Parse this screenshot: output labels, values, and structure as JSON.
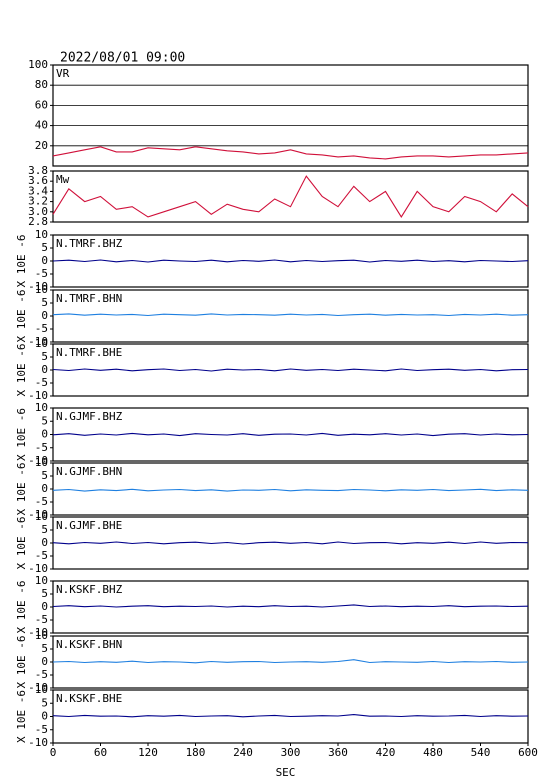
{
  "header": {
    "title": "2022/08/01 09:00"
  },
  "chart_data": [
    {
      "type": "line",
      "title": "VR",
      "xlim": [
        0,
        600
      ],
      "ylim": [
        0,
        100
      ],
      "yticks": [
        20,
        40,
        60,
        80,
        100
      ],
      "grid": true,
      "x": [
        0,
        20,
        40,
        60,
        80,
        100,
        120,
        140,
        160,
        180,
        200,
        220,
        240,
        260,
        280,
        300,
        320,
        340,
        360,
        380,
        400,
        420,
        440,
        460,
        480,
        500,
        520,
        540,
        560,
        580,
        600
      ],
      "series": [
        {
          "color": "#d0103a",
          "values": [
            10,
            13,
            16,
            19,
            14,
            14,
            18,
            17,
            16,
            19,
            17,
            15,
            14,
            12,
            13,
            16,
            12,
            11,
            9,
            10,
            8,
            7,
            9,
            10,
            10,
            9,
            10,
            11,
            11,
            12,
            13
          ]
        }
      ]
    },
    {
      "type": "line",
      "title": "Mw",
      "xlim": [
        0,
        600
      ],
      "ylim": [
        2.8,
        3.8
      ],
      "yticks": [
        2.8,
        {
          "value": 3,
          "label": "3.0"
        },
        3.2,
        3.4,
        3.6,
        3.8
      ],
      "x": [
        0,
        20,
        40,
        60,
        80,
        100,
        120,
        140,
        160,
        180,
        200,
        220,
        240,
        260,
        280,
        300,
        320,
        340,
        360,
        380,
        400,
        420,
        440,
        460,
        480,
        500,
        520,
        540,
        560,
        580,
        600
      ],
      "series": [
        {
          "color": "#d0103a",
          "values": [
            2.95,
            3.45,
            3.2,
            3.3,
            3.05,
            3.1,
            2.9,
            3.0,
            3.1,
            3.2,
            2.95,
            3.15,
            3.05,
            3.0,
            3.25,
            3.1,
            3.7,
            3.3,
            3.1,
            3.5,
            3.2,
            3.4,
            2.9,
            3.4,
            3.1,
            3.0,
            3.3,
            3.2,
            3.0,
            3.35,
            3.1
          ]
        }
      ]
    },
    {
      "type": "line",
      "title": "N.TMRF.BHZ",
      "ylabel": "X 10E -6",
      "xlim": [
        0,
        600
      ],
      "ylim": [
        -10,
        10
      ],
      "yticks": [
        -10,
        -5,
        0,
        5,
        10
      ],
      "x": [
        0,
        20,
        40,
        60,
        80,
        100,
        120,
        140,
        160,
        180,
        200,
        220,
        240,
        260,
        280,
        300,
        320,
        340,
        360,
        380,
        400,
        420,
        440,
        460,
        480,
        500,
        520,
        540,
        560,
        580,
        600
      ],
      "series": [
        {
          "color": "#00008b",
          "values": [
            0,
            0.3,
            -0.2,
            0.4,
            -0.3,
            0.2,
            -0.4,
            0.3,
            0,
            -0.2,
            0.3,
            -0.3,
            0.2,
            -0.1,
            0.4,
            -0.3,
            0.2,
            -0.2,
            0.1,
            0.3,
            -0.4,
            0.2,
            -0.1,
            0.3,
            -0.2,
            0.1,
            -0.3,
            0.2,
            0,
            -0.2,
            0.1
          ]
        }
      ]
    },
    {
      "type": "line",
      "title": "N.TMRF.BHN",
      "ylabel": "X 10E -6",
      "xlim": [
        0,
        600
      ],
      "ylim": [
        -10,
        10
      ],
      "yticks": [
        -10,
        -5,
        0,
        5,
        10
      ],
      "x": [
        0,
        20,
        40,
        60,
        80,
        100,
        120,
        140,
        160,
        180,
        200,
        220,
        240,
        260,
        280,
        300,
        320,
        340,
        360,
        380,
        400,
        420,
        440,
        460,
        480,
        500,
        520,
        540,
        560,
        580,
        600
      ],
      "series": [
        {
          "color": "#1e7fe0",
          "values": [
            0.5,
            0.8,
            0.3,
            0.7,
            0.4,
            0.6,
            0.2,
            0.7,
            0.5,
            0.3,
            0.8,
            0.4,
            0.6,
            0.5,
            0.3,
            0.7,
            0.4,
            0.6,
            0.2,
            0.5,
            0.7,
            0.3,
            0.6,
            0.4,
            0.5,
            0.2,
            0.6,
            0.4,
            0.7,
            0.3,
            0.5
          ]
        }
      ]
    },
    {
      "type": "line",
      "title": "N.TMRF.BHE",
      "ylabel": "X 10E -6",
      "xlim": [
        0,
        600
      ],
      "ylim": [
        -10,
        10
      ],
      "yticks": [
        -10,
        -5,
        0,
        5,
        10
      ],
      "x": [
        0,
        20,
        40,
        60,
        80,
        100,
        120,
        140,
        160,
        180,
        200,
        220,
        240,
        260,
        280,
        300,
        320,
        340,
        360,
        380,
        400,
        420,
        440,
        460,
        480,
        500,
        520,
        540,
        560,
        580,
        600
      ],
      "series": [
        {
          "color": "#00008b",
          "values": [
            0.2,
            -0.2,
            0.4,
            -0.1,
            0.3,
            -0.3,
            0.1,
            0.4,
            -0.2,
            0.2,
            -0.4,
            0.3,
            0,
            0.2,
            -0.3,
            0.4,
            -0.1,
            0.2,
            -0.2,
            0.3,
            0,
            -0.3,
            0.4,
            -0.2,
            0.1,
            0.3,
            -0.1,
            0.2,
            -0.3,
            0.1,
            0.2
          ]
        }
      ]
    },
    {
      "type": "line",
      "title": "N.GJMF.BHZ",
      "ylabel": "X 10E -6",
      "xlim": [
        0,
        600
      ],
      "ylim": [
        -10,
        10
      ],
      "yticks": [
        -10,
        -5,
        0,
        5,
        10
      ],
      "x": [
        0,
        20,
        40,
        60,
        80,
        100,
        120,
        140,
        160,
        180,
        200,
        220,
        240,
        260,
        280,
        300,
        320,
        340,
        360,
        380,
        400,
        420,
        440,
        460,
        480,
        500,
        520,
        540,
        560,
        580,
        600
      ],
      "series": [
        {
          "color": "#00008b",
          "values": [
            -0.1,
            0.3,
            -0.3,
            0.2,
            -0.2,
            0.4,
            -0.1,
            0.2,
            -0.4,
            0.3,
            0,
            -0.2,
            0.3,
            -0.3,
            0.1,
            0.2,
            -0.2,
            0.4,
            -0.3,
            0.1,
            -0.1,
            0.3,
            -0.2,
            0.2,
            -0.4,
            0.1,
            0.3,
            -0.2,
            0.2,
            -0.1,
            0
          ]
        }
      ]
    },
    {
      "type": "line",
      "title": "N.GJMF.BHN",
      "ylabel": "X 10E -6",
      "xlim": [
        0,
        600
      ],
      "ylim": [
        -10,
        10
      ],
      "yticks": [
        -10,
        -5,
        0,
        5,
        10
      ],
      "x": [
        0,
        20,
        40,
        60,
        80,
        100,
        120,
        140,
        160,
        180,
        200,
        220,
        240,
        260,
        280,
        300,
        320,
        340,
        360,
        380,
        400,
        420,
        440,
        460,
        480,
        500,
        520,
        540,
        560,
        580,
        600
      ],
      "series": [
        {
          "color": "#1e7fe0",
          "values": [
            -0.5,
            -0.2,
            -0.8,
            -0.3,
            -0.6,
            -0.1,
            -0.7,
            -0.4,
            -0.2,
            -0.6,
            -0.3,
            -0.8,
            -0.4,
            -0.5,
            -0.2,
            -0.7,
            -0.3,
            -0.5,
            -0.6,
            -0.2,
            -0.4,
            -0.7,
            -0.3,
            -0.5,
            -0.2,
            -0.6,
            -0.4,
            -0.1,
            -0.6,
            -0.3,
            -0.5
          ]
        }
      ]
    },
    {
      "type": "line",
      "title": "N.GJMF.BHE",
      "ylabel": "X 10E -6",
      "xlim": [
        0,
        600
      ],
      "ylim": [
        -10,
        10
      ],
      "yticks": [
        -10,
        -5,
        0,
        5,
        10
      ],
      "x": [
        0,
        20,
        40,
        60,
        80,
        100,
        120,
        140,
        160,
        180,
        200,
        220,
        240,
        260,
        280,
        300,
        320,
        340,
        360,
        380,
        400,
        420,
        440,
        460,
        480,
        500,
        520,
        540,
        560,
        580,
        600
      ],
      "series": [
        {
          "color": "#00008b",
          "values": [
            0.1,
            -0.3,
            0.2,
            -0.1,
            0.4,
            -0.2,
            0.2,
            -0.3,
            0.1,
            0.3,
            -0.2,
            0.2,
            -0.4,
            0.1,
            0.3,
            -0.1,
            0.2,
            -0.3,
            0.4,
            -0.2,
            0.1,
            0.2,
            -0.3,
            0.1,
            -0.1,
            0.3,
            -0.2,
            0.4,
            -0.1,
            0.2,
            0.1
          ]
        }
      ]
    },
    {
      "type": "line",
      "title": "N.KSKF.BHZ",
      "ylabel": "X 10E -6",
      "xlim": [
        0,
        600
      ],
      "ylim": [
        -10,
        10
      ],
      "yticks": [
        -10,
        -5,
        0,
        5,
        10
      ],
      "x": [
        0,
        20,
        40,
        60,
        80,
        100,
        120,
        140,
        160,
        180,
        200,
        220,
        240,
        260,
        280,
        300,
        320,
        340,
        360,
        380,
        400,
        420,
        440,
        460,
        480,
        500,
        520,
        540,
        560,
        580,
        600
      ],
      "series": [
        {
          "color": "#00008b",
          "values": [
            0.2,
            0.5,
            0.1,
            0.4,
            0,
            0.3,
            0.5,
            0.1,
            0.3,
            0.2,
            0.4,
            0,
            0.3,
            0.1,
            0.5,
            0.2,
            0.3,
            0,
            0.4,
            0.8,
            0.2,
            0.4,
            0.1,
            0.3,
            0.2,
            0.5,
            0.1,
            0.3,
            0.4,
            0.2,
            0.3
          ]
        }
      ]
    },
    {
      "type": "line",
      "title": "N.KSKF.BHN",
      "ylabel": "X 10E -6",
      "xlim": [
        0,
        600
      ],
      "ylim": [
        -10,
        10
      ],
      "yticks": [
        -10,
        -5,
        0,
        5,
        10
      ],
      "x": [
        0,
        20,
        40,
        60,
        80,
        100,
        120,
        140,
        160,
        180,
        200,
        220,
        240,
        260,
        280,
        300,
        320,
        340,
        360,
        380,
        400,
        420,
        440,
        460,
        480,
        500,
        520,
        540,
        560,
        580,
        600
      ],
      "series": [
        {
          "color": "#1e7fe0",
          "values": [
            0,
            0.2,
            -0.2,
            0.1,
            -0.1,
            0.3,
            -0.2,
            0.1,
            0,
            -0.3,
            0.2,
            -0.1,
            0.1,
            0.2,
            -0.2,
            0,
            0.1,
            -0.1,
            0.2,
            0.9,
            -0.2,
            0.1,
            0,
            -0.1,
            0.2,
            -0.2,
            0.1,
            0,
            0.2,
            -0.1,
            0
          ]
        }
      ]
    },
    {
      "type": "line",
      "title": "N.KSKF.BHE",
      "ylabel": "X 10E -6",
      "xlim": [
        0,
        600
      ],
      "ylim": [
        -10,
        10
      ],
      "yticks": [
        -10,
        -5,
        0,
        5,
        10
      ],
      "xticks": [
        0,
        60,
        120,
        180,
        240,
        300,
        360,
        420,
        480,
        540,
        600
      ],
      "xlabel": "SEC",
      "x": [
        0,
        20,
        40,
        60,
        80,
        100,
        120,
        140,
        160,
        180,
        200,
        220,
        240,
        260,
        280,
        300,
        320,
        340,
        360,
        380,
        400,
        420,
        440,
        460,
        480,
        500,
        520,
        540,
        560,
        580,
        600
      ],
      "series": [
        {
          "color": "#00008b",
          "values": [
            0.3,
            0,
            0.4,
            0.1,
            0.2,
            -0.1,
            0.3,
            0.1,
            0.4,
            0,
            0.2,
            0.3,
            -0.1,
            0.2,
            0.4,
            0,
            0.1,
            0.3,
            0.2,
            0.7,
            0.1,
            0.2,
            0,
            0.3,
            0.1,
            0.2,
            0.4,
            0,
            0.3,
            0.1,
            0.2
          ]
        }
      ]
    }
  ]
}
